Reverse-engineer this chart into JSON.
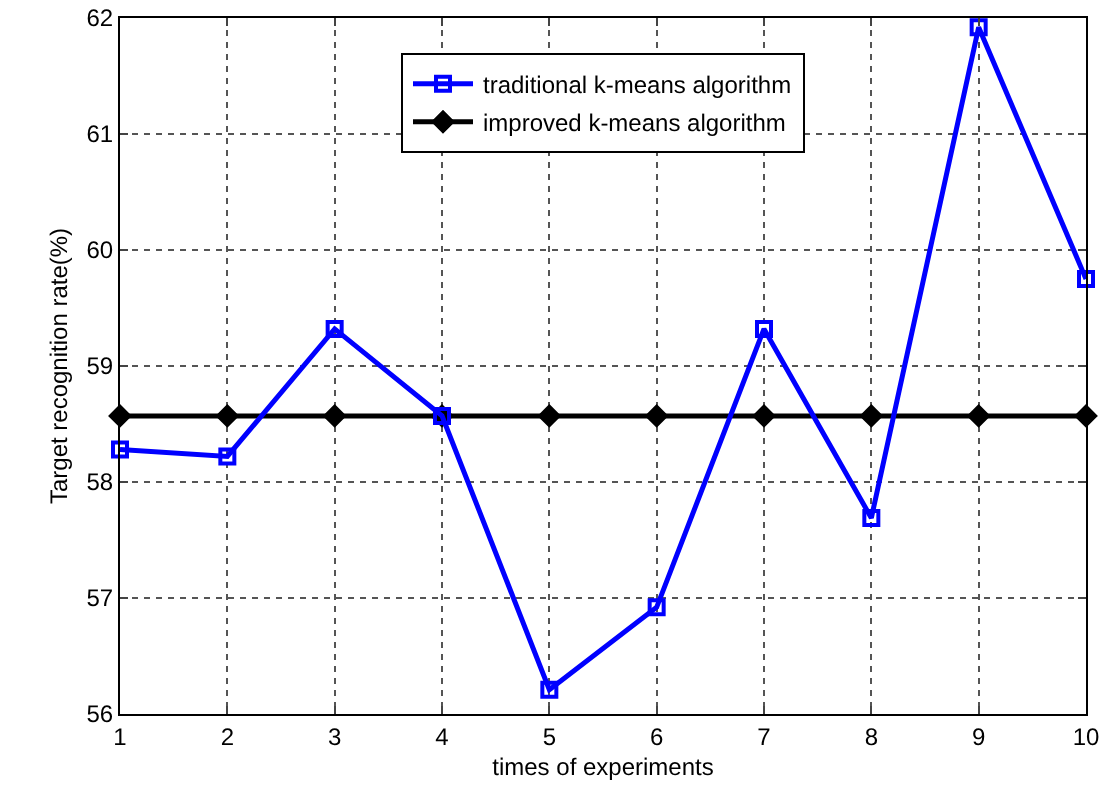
{
  "chart_data": {
    "type": "line",
    "xlabel": "times of experiments",
    "ylabel": "Target recognition rate(%)",
    "x": [
      1,
      2,
      3,
      4,
      5,
      6,
      7,
      8,
      9,
      10
    ],
    "series": [
      {
        "name": "traditional k-means algorithm",
        "color": "#0000ff",
        "marker": "square",
        "values": [
          58.28,
          58.22,
          59.32,
          58.57,
          56.21,
          56.92,
          59.32,
          57.69,
          61.92,
          59.75
        ]
      },
      {
        "name": "improved k-means algorithm",
        "color": "#000000",
        "marker": "diamond",
        "values": [
          58.57,
          58.57,
          58.57,
          58.57,
          58.57,
          58.57,
          58.57,
          58.57,
          58.57,
          58.57
        ]
      }
    ],
    "xlim": [
      1,
      10
    ],
    "xticks": [
      1,
      2,
      3,
      4,
      5,
      6,
      7,
      8,
      9,
      10
    ],
    "ylim": [
      56,
      62
    ],
    "yticks": [
      56,
      57,
      58,
      59,
      60,
      61,
      62
    ],
    "grid": true,
    "legend": "top",
    "line_style": "solid"
  }
}
